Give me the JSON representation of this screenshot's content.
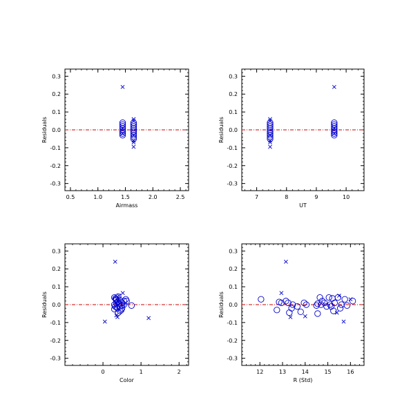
{
  "colors": {
    "marker": "#0000cc",
    "zero_line": "#cc0000",
    "axes": "#000000"
  },
  "chart_data": [
    {
      "type": "scatter",
      "xlabel": "Airmass",
      "ylabel": "Residuals",
      "xlim": [
        0.4,
        2.65
      ],
      "ylim": [
        -0.34,
        0.34
      ],
      "x_ticks": [
        0.5,
        1.0,
        1.5,
        2.0,
        2.5
      ],
      "x_tick_labels": [
        "0.5",
        "1.0",
        "1.5",
        "2.0",
        "2.5"
      ],
      "y_ticks": [
        -0.3,
        -0.2,
        -0.1,
        0.0,
        0.1,
        0.2,
        0.3
      ],
      "y_tick_labels": [
        "-0.3",
        "-0.2",
        "-0.1",
        "0.0",
        "0.1",
        "0.2",
        "0.3"
      ],
      "reference_line": 0.0,
      "series": [
        {
          "marker": "circle",
          "x": [
            1.45,
            1.45,
            1.45,
            1.45,
            1.45,
            1.45,
            1.45,
            1.45,
            1.65,
            1.65,
            1.65,
            1.65,
            1.65,
            1.65,
            1.65,
            1.65,
            1.65,
            1.65
          ],
          "y": [
            0.04,
            0.03,
            0.02,
            0.01,
            0.0,
            -0.01,
            -0.02,
            -0.03,
            0.04,
            0.03,
            0.02,
            0.01,
            0.0,
            -0.01,
            -0.02,
            -0.03,
            -0.04,
            -0.05
          ]
        },
        {
          "marker": "x",
          "x": [
            1.45,
            1.45,
            1.45,
            1.65,
            1.65,
            1.65,
            1.65,
            1.65,
            1.65
          ],
          "y": [
            0.24,
            0.01,
            -0.02,
            0.06,
            0.05,
            -0.03,
            -0.06,
            -0.07,
            -0.095
          ]
        }
      ]
    },
    {
      "type": "scatter",
      "xlabel": "UT",
      "ylabel": "Residuals",
      "xlim": [
        6.5,
        10.6
      ],
      "ylim": [
        -0.34,
        0.34
      ],
      "x_ticks": [
        7,
        8,
        9,
        10
      ],
      "x_tick_labels": [
        "7",
        "8",
        "9",
        "10"
      ],
      "y_ticks": [
        -0.3,
        -0.2,
        -0.1,
        0.0,
        0.1,
        0.2,
        0.3
      ],
      "y_tick_labels": [
        "-0.3",
        "-0.2",
        "-0.1",
        "0.0",
        "0.1",
        "0.2",
        "0.3"
      ],
      "reference_line": 0.0,
      "series": [
        {
          "marker": "circle",
          "x": [
            7.45,
            7.45,
            7.45,
            7.45,
            7.45,
            7.45,
            7.45,
            7.45,
            7.45,
            7.45,
            9.6,
            9.6,
            9.6,
            9.6,
            9.6,
            9.6,
            9.6,
            9.6
          ],
          "y": [
            0.04,
            0.03,
            0.02,
            0.01,
            0.0,
            -0.01,
            -0.02,
            -0.03,
            -0.04,
            -0.05,
            0.04,
            0.03,
            0.02,
            0.01,
            0.0,
            -0.01,
            -0.02,
            -0.03
          ]
        },
        {
          "marker": "x",
          "x": [
            7.45,
            7.45,
            7.45,
            7.45,
            7.45,
            7.45,
            9.6,
            9.6,
            9.6
          ],
          "y": [
            0.06,
            0.05,
            -0.03,
            -0.06,
            -0.07,
            -0.095,
            0.24,
            0.01,
            -0.02
          ]
        }
      ]
    },
    {
      "type": "scatter",
      "xlabel": "Color",
      "ylabel": "Residuals",
      "xlim": [
        -1.0,
        2.25
      ],
      "ylim": [
        -0.34,
        0.34
      ],
      "x_ticks": [
        0,
        1,
        2
      ],
      "x_tick_labels": [
        "0",
        "1",
        "2"
      ],
      "y_ticks": [
        -0.3,
        -0.2,
        -0.1,
        0.0,
        0.1,
        0.2,
        0.3
      ],
      "y_tick_labels": [
        "-0.3",
        "-0.2",
        "-0.1",
        "0.0",
        "0.1",
        "0.2",
        "0.3"
      ],
      "reference_line": 0.0,
      "series": [
        {
          "marker": "circle",
          "x": [
            0.3,
            0.35,
            0.4,
            0.35,
            0.3,
            0.45,
            0.5,
            0.4,
            0.33,
            0.38,
            0.42,
            0.55,
            0.6,
            0.5,
            0.36,
            0.3,
            0.45,
            0.75,
            0.4,
            0.35,
            0.32,
            0.5,
            0.55,
            0.62,
            0.38,
            0.44,
            0.48,
            0.34
          ],
          "y": [
            0.04,
            0.03,
            0.02,
            0.01,
            0.0,
            -0.01,
            -0.02,
            0.045,
            0.035,
            0.015,
            0.005,
            0.02,
            0.03,
            -0.005,
            -0.015,
            -0.025,
            -0.035,
            -0.005,
            -0.045,
            0.025,
            -0.01,
            0.01,
            0.0,
            0.02,
            -0.02,
            0.025,
            -0.03,
            0.03
          ]
        },
        {
          "marker": "x",
          "x": [
            0.32,
            0.05,
            1.2,
            0.52,
            0.35,
            0.38,
            0.42
          ],
          "y": [
            0.24,
            -0.095,
            -0.075,
            0.065,
            -0.06,
            -0.07,
            0.05
          ]
        }
      ]
    },
    {
      "type": "scatter",
      "xlabel": "R (Std)",
      "ylabel": "Residuals",
      "xlim": [
        11.2,
        16.6
      ],
      "ylim": [
        -0.34,
        0.34
      ],
      "x_ticks": [
        12,
        13,
        14,
        15,
        16
      ],
      "x_tick_labels": [
        "12",
        "13",
        "14",
        "15",
        "16"
      ],
      "y_ticks": [
        -0.3,
        -0.2,
        -0.1,
        0.0,
        0.1,
        0.2,
        0.3
      ],
      "y_tick_labels": [
        "-0.3",
        "-0.2",
        "-0.1",
        "0.0",
        "0.1",
        "0.2",
        "0.3"
      ],
      "reference_line": 0.0,
      "series": [
        {
          "marker": "circle",
          "x": [
            12.05,
            12.75,
            12.95,
            13.15,
            13.25,
            13.4,
            13.45,
            13.65,
            13.8,
            13.95,
            14.05,
            14.5,
            14.55,
            14.65,
            14.7,
            14.75,
            14.85,
            14.95,
            15.05,
            15.1,
            15.2,
            15.25,
            15.3,
            15.45,
            15.55,
            15.6,
            15.75,
            15.85,
            16.1,
            13.3,
            14.55,
            15.15,
            12.85
          ],
          "y": [
            0.03,
            -0.03,
            0.01,
            0.02,
            0.01,
            -0.02,
            0.0,
            -0.01,
            -0.04,
            0.01,
            0.0,
            -0.005,
            -0.05,
            0.04,
            0.0,
            0.02,
            0.01,
            -0.01,
            0.04,
            0.0,
            0.035,
            -0.035,
            0.01,
            0.04,
            -0.02,
            0.0,
            0.03,
            -0.005,
            0.02,
            -0.045,
            0.005,
            -0.01,
            0.015
          ]
        },
        {
          "marker": "x",
          "x": [
            13.15,
            12.95,
            13.35,
            14.0,
            15.5,
            15.7,
            15.4,
            16.0
          ],
          "y": [
            0.24,
            0.065,
            -0.07,
            -0.065,
            0.05,
            -0.095,
            -0.045,
            0.03
          ]
        }
      ]
    }
  ]
}
